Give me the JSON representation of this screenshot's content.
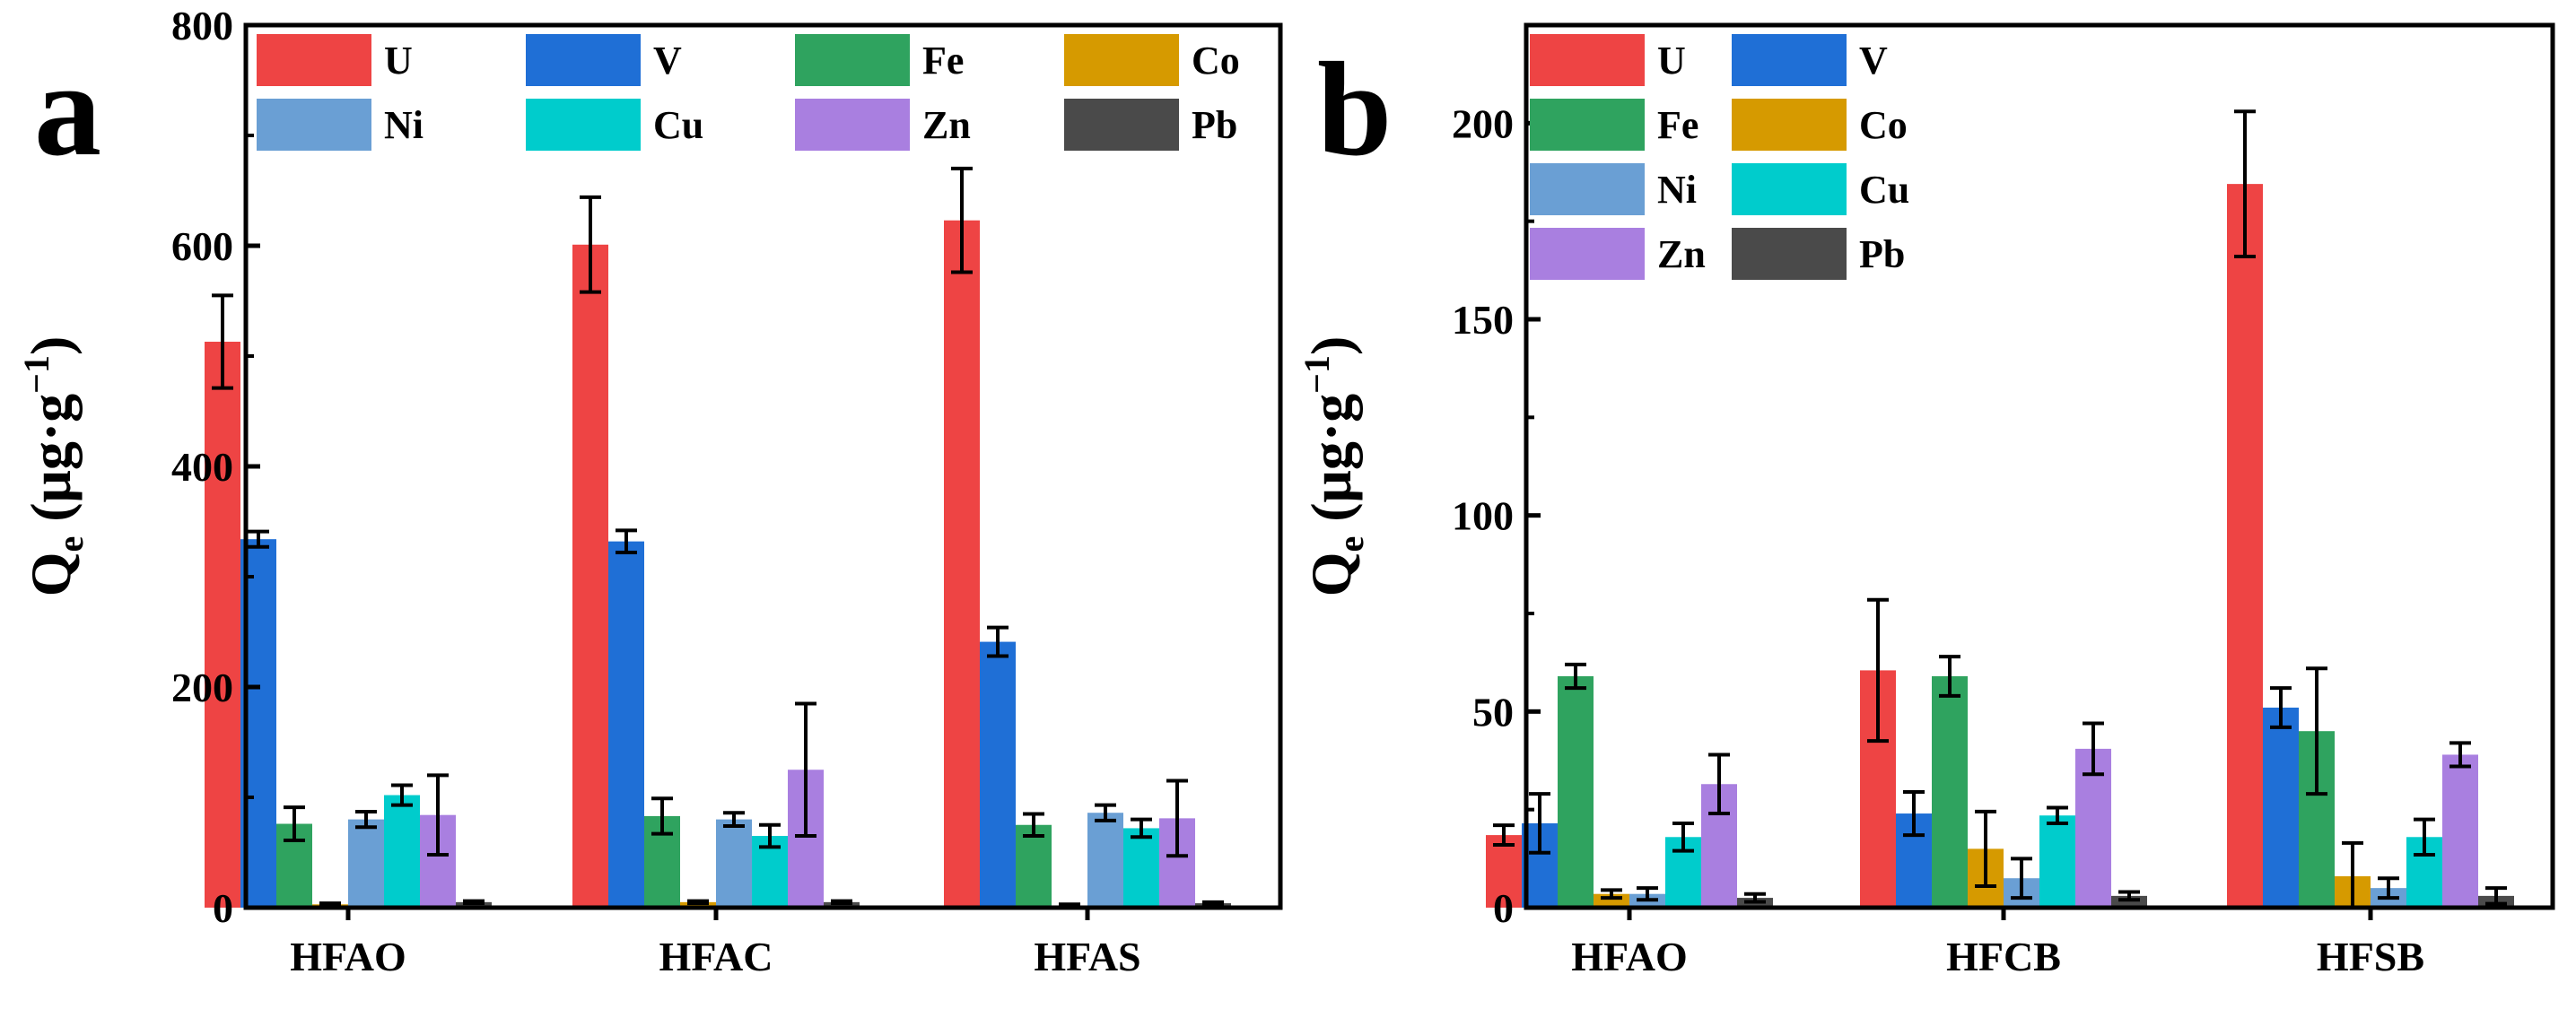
{
  "chart_data": [
    {
      "panel": "a",
      "type": "bar",
      "ylabel": {
        "main": "Q",
        "sub": "e",
        "units_open": " (μg·g",
        "units_sup": "−1",
        "units_close": ")"
      },
      "ylim": [
        0,
        800
      ],
      "yticks": [
        0,
        200,
        400,
        600,
        800
      ],
      "categories": [
        "HFAO",
        "HFAC",
        "HFAS"
      ],
      "legend": {
        "placement": "top-left",
        "columns": 4
      },
      "series": [
        {
          "name": "U",
          "color": "#ee4444",
          "values": [
            513,
            601,
            623
          ],
          "errors": [
            42,
            43,
            47
          ]
        },
        {
          "name": "V",
          "color": "#1f6fd6",
          "values": [
            334,
            332,
            241
          ],
          "errors": [
            7,
            10,
            13
          ]
        },
        {
          "name": "Fe",
          "color": "#2fa35f",
          "values": [
            76,
            83,
            75
          ],
          "errors": [
            15,
            16,
            10
          ]
        },
        {
          "name": "Co",
          "color": "#d69a00",
          "values": [
            3,
            5,
            2
          ],
          "errors": [
            1,
            1,
            1
          ]
        },
        {
          "name": "Ni",
          "color": "#6a9fd4",
          "values": [
            80,
            80,
            86
          ],
          "errors": [
            7,
            6,
            7
          ]
        },
        {
          "name": "Cu",
          "color": "#00cccc",
          "values": [
            102,
            65,
            72
          ],
          "errors": [
            9,
            10,
            8
          ]
        },
        {
          "name": "Zn",
          "color": "#a97fe0",
          "values": [
            84,
            125,
            81
          ],
          "errors": [
            36,
            60,
            34
          ]
        },
        {
          "name": "Pb",
          "color": "#4a4a4a",
          "values": [
            5,
            5,
            4
          ],
          "errors": [
            1,
            1,
            1
          ]
        }
      ]
    },
    {
      "panel": "b",
      "type": "bar",
      "ylabel": {
        "main": "Q",
        "sub": "e",
        "units_open": " (μg·g",
        "units_sup": "−1",
        "units_close": ")"
      },
      "ylim": [
        0,
        225
      ],
      "yticks": [
        0,
        50,
        100,
        150,
        200
      ],
      "categories": [
        "HFAO",
        "HFCB",
        "HFSB"
      ],
      "legend": {
        "placement": "top-left",
        "columns": 2
      },
      "series": [
        {
          "name": "U",
          "color": "#ee4444",
          "values": [
            18.5,
            60.5,
            184.5
          ],
          "errors": [
            2.5,
            18,
            18.5
          ]
        },
        {
          "name": "V",
          "color": "#1f6fd6",
          "values": [
            21.5,
            24,
            51
          ],
          "errors": [
            7.5,
            5.5,
            5
          ]
        },
        {
          "name": "Fe",
          "color": "#2fa35f",
          "values": [
            59,
            59,
            45
          ],
          "errors": [
            3,
            5,
            16
          ]
        },
        {
          "name": "Co",
          "color": "#d69a00",
          "values": [
            3.5,
            15,
            8
          ],
          "errors": [
            1,
            9.5,
            8.5
          ]
        },
        {
          "name": "Ni",
          "color": "#6a9fd4",
          "values": [
            3.5,
            7.5,
            5
          ],
          "errors": [
            1.5,
            5,
            2.5
          ]
        },
        {
          "name": "Cu",
          "color": "#00cccc",
          "values": [
            18,
            23.5,
            18
          ],
          "errors": [
            3.5,
            2,
            4.5
          ]
        },
        {
          "name": "Zn",
          "color": "#a97fe0",
          "values": [
            31.5,
            40.5,
            39
          ],
          "errors": [
            7.5,
            6.5,
            3
          ]
        },
        {
          "name": "Pb",
          "color": "#4a4a4a",
          "values": [
            2.5,
            3,
            3
          ],
          "errors": [
            1,
            1,
            2
          ]
        }
      ]
    }
  ]
}
